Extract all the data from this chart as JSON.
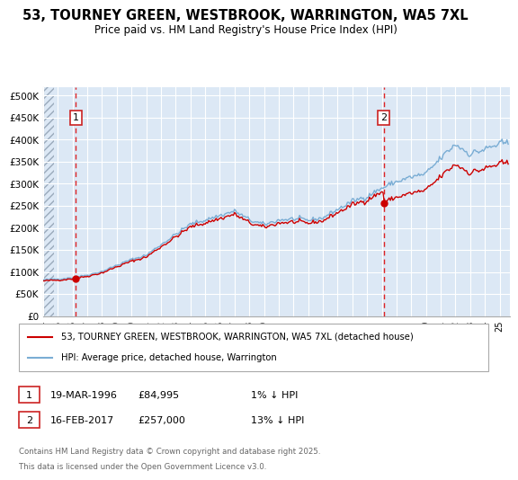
{
  "title_line1": "53, TOURNEY GREEN, WESTBROOK, WARRINGTON, WA5 7XL",
  "title_line2": "Price paid vs. HM Land Registry's House Price Index (HPI)",
  "plot_bg_color": "#dce8f5",
  "grid_color": "#ffffff",
  "ylabel_ticks": [
    "£0",
    "£50K",
    "£100K",
    "£150K",
    "£200K",
    "£250K",
    "£300K",
    "£350K",
    "£400K",
    "£450K",
    "£500K"
  ],
  "ytick_values": [
    0,
    50000,
    100000,
    150000,
    200000,
    250000,
    300000,
    350000,
    400000,
    450000,
    500000
  ],
  "ylim": [
    0,
    520000
  ],
  "xlim_start": 1994.0,
  "xlim_end": 2025.7,
  "xtick_years": [
    1994,
    1995,
    1996,
    1997,
    1998,
    1999,
    2000,
    2001,
    2002,
    2003,
    2004,
    2005,
    2006,
    2007,
    2008,
    2009,
    2010,
    2011,
    2012,
    2013,
    2014,
    2015,
    2016,
    2017,
    2018,
    2019,
    2020,
    2021,
    2022,
    2023,
    2024,
    2025
  ],
  "sale1_x": 1996.21,
  "sale1_y": 84995,
  "sale1_label": "1",
  "sale1_date": "19-MAR-1996",
  "sale1_price": "£84,995",
  "sale1_hpi": "1% ↓ HPI",
  "sale2_x": 2017.12,
  "sale2_y": 257000,
  "sale2_label": "2",
  "sale2_date": "16-FEB-2017",
  "sale2_price": "£257,000",
  "sale2_hpi": "13% ↓ HPI",
  "legend_line1": "53, TOURNEY GREEN, WESTBROOK, WARRINGTON, WA5 7XL (detached house)",
  "legend_line2": "HPI: Average price, detached house, Warrington",
  "footer_line1": "Contains HM Land Registry data © Crown copyright and database right 2025.",
  "footer_line2": "This data is licensed under the Open Government Licence v3.0.",
  "line_color_red": "#cc0000",
  "line_color_blue": "#7aadd4",
  "annotation_box_color": "#cc2222"
}
